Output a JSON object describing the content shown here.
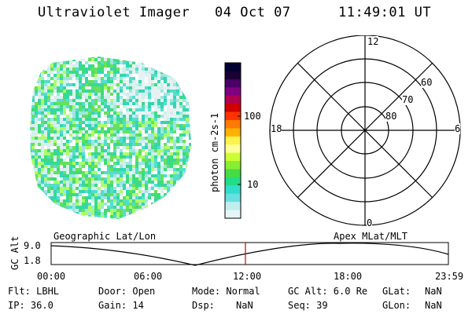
{
  "header": {
    "title": "Ultraviolet Imager",
    "date": "04 Oct 07",
    "time": "11:49:01 UT"
  },
  "colorbar": {
    "unit_label": "photon cm-2s-1",
    "ticks": [
      "100",
      "10"
    ],
    "colors": [
      "#000033",
      "#1a0033",
      "#4a0066",
      "#800080",
      "#b0004f",
      "#d00000",
      "#ff3300",
      "#ff7a00",
      "#ffb000",
      "#fff24d",
      "#ffff99",
      "#ccff33",
      "#88ee33",
      "#44dd44",
      "#22dd88",
      "#33ddcc",
      "#66e0e0",
      "#bfeeee",
      "#e6f5f5"
    ]
  },
  "polar": {
    "mlt_labels": {
      "top": "12",
      "right": "6",
      "bottom": "0",
      "left": "18"
    },
    "mlat_labels": [
      "60",
      "70",
      "80"
    ]
  },
  "timeline": {
    "ylabel": "GC Alt",
    "ymax": "9.0",
    "ymin": "1.8",
    "left_caption": "Geographic Lat/Lon",
    "right_caption": "Apex MLat/MLT",
    "xticks": [
      "00:00",
      "06:00",
      "12:00",
      "18:00",
      "23:59"
    ],
    "current_time_marker": "11:49"
  },
  "footer": {
    "flt": "Flt: LBHL",
    "ip": "IP: 36.0",
    "door": "Door: Open",
    "gain": "Gain: 14",
    "mode": "Mode: Normal",
    "dsp_label": "Dsp:",
    "dsp_value": "NaN",
    "gc_alt": "GC Alt: 6.0 Re",
    "seq": "Seq: 39",
    "glat_label": "GLat:",
    "glat_value": "NaN",
    "glon_label": "GLon:",
    "glon_value": "NaN"
  }
}
